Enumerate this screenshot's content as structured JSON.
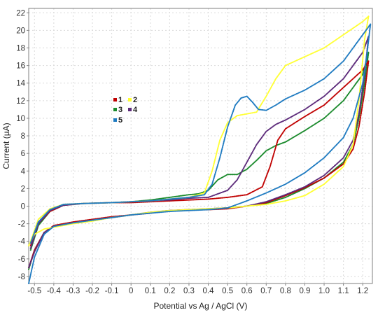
{
  "chart_data": {
    "type": "line",
    "xlabel": "Potential vs Ag / AgCl (V)",
    "ylabel": "Current (µA)",
    "xlim": [
      -0.53,
      1.25
    ],
    "ylim": [
      -8.8,
      22.5
    ],
    "xticks": [
      "-0.5",
      "-0.4",
      "-0.3",
      "-0.2",
      "-0.1",
      "0",
      "0.1",
      "0.2",
      "0.3",
      "0.4",
      "0.5",
      "0.6",
      "0.7",
      "0.8",
      "0.9",
      "1.0",
      "1.1",
      "1.2"
    ],
    "xtick_values": [
      -0.5,
      -0.4,
      -0.3,
      -0.2,
      -0.1,
      0,
      0.1,
      0.2,
      0.3,
      0.4,
      0.5,
      0.6,
      0.7,
      0.8,
      0.9,
      1.0,
      1.1,
      1.2
    ],
    "yticks": [
      "-8",
      "-6",
      "-4",
      "-2",
      "0",
      "2",
      "4",
      "6",
      "8",
      "10",
      "12",
      "14",
      "16",
      "18",
      "20",
      "22"
    ],
    "ytick_values": [
      -8,
      -6,
      -4,
      -2,
      0,
      2,
      4,
      6,
      8,
      10,
      12,
      14,
      16,
      18,
      20,
      22
    ],
    "grid": true,
    "legend_placement": "center-left",
    "series": [
      {
        "name": "1",
        "color": "#c00000",
        "x": [
          -0.52,
          -0.48,
          -0.42,
          -0.35,
          -0.25,
          -0.1,
          0.0,
          0.1,
          0.2,
          0.3,
          0.4,
          0.5,
          0.6,
          0.68,
          0.72,
          0.76,
          0.8,
          0.9,
          1.0,
          1.1,
          1.2,
          1.23,
          1.21,
          1.18,
          1.15,
          1.1,
          1.0,
          0.9,
          0.8,
          0.7,
          0.6,
          0.5,
          0.4,
          0.3,
          0.2,
          0.1,
          0.0,
          -0.1,
          -0.2,
          -0.3,
          -0.4,
          -0.45,
          -0.5,
          -0.53
        ],
        "y": [
          -4.5,
          -2.0,
          -0.6,
          0.1,
          0.3,
          0.4,
          0.4,
          0.5,
          0.6,
          0.7,
          0.8,
          1.0,
          1.3,
          2.2,
          4.5,
          7.5,
          8.8,
          10.2,
          11.5,
          13.5,
          15.5,
          16.5,
          13.0,
          9.0,
          6.5,
          4.8,
          3.2,
          2.1,
          1.2,
          0.4,
          0.0,
          -0.3,
          -0.4,
          -0.4,
          -0.5,
          -0.8,
          -1.0,
          -1.2,
          -1.5,
          -1.8,
          -2.2,
          -3.0,
          -5.0,
          -7.0
        ]
      },
      {
        "name": "2",
        "color": "#ffff33",
        "x": [
          -0.52,
          -0.48,
          -0.42,
          -0.35,
          -0.25,
          -0.1,
          0.0,
          0.1,
          0.2,
          0.3,
          0.38,
          0.42,
          0.46,
          0.5,
          0.55,
          0.6,
          0.65,
          0.7,
          0.75,
          0.8,
          0.9,
          1.0,
          1.1,
          1.2,
          1.23,
          1.21,
          1.18,
          1.15,
          1.1,
          1.0,
          0.9,
          0.8,
          0.7,
          0.6,
          0.5,
          0.4,
          0.3,
          0.2,
          0.1,
          0.0,
          -0.1,
          -0.2,
          -0.3,
          -0.4,
          -0.45,
          -0.5,
          -0.53
        ],
        "y": [
          -4.0,
          -1.5,
          -0.3,
          0.2,
          0.3,
          0.4,
          0.5,
          0.6,
          0.8,
          1.0,
          1.5,
          4.0,
          7.5,
          9.5,
          10.3,
          10.5,
          10.7,
          12.5,
          14.5,
          16.0,
          17.0,
          18.0,
          19.5,
          21.0,
          21.6,
          19.0,
          12.0,
          7.0,
          4.5,
          2.5,
          1.2,
          0.6,
          0.2,
          0.0,
          -0.2,
          -0.3,
          -0.4,
          -0.5,
          -0.7,
          -1.0,
          -1.3,
          -1.7,
          -2.0,
          -2.4,
          -2.6,
          -3.2,
          -4.5
        ]
      },
      {
        "name": "3",
        "color": "#1a8a2c",
        "x": [
          -0.52,
          -0.48,
          -0.42,
          -0.35,
          -0.25,
          -0.1,
          0.0,
          0.1,
          0.2,
          0.3,
          0.35,
          0.4,
          0.45,
          0.5,
          0.55,
          0.6,
          0.65,
          0.7,
          0.75,
          0.8,
          0.9,
          1.0,
          1.1,
          1.2,
          1.23,
          1.21,
          1.18,
          1.15,
          1.1,
          1.0,
          0.9,
          0.8,
          0.7,
          0.6,
          0.5,
          0.4,
          0.3,
          0.2,
          0.1,
          0.0,
          -0.1,
          -0.2,
          -0.3,
          -0.4,
          -0.45,
          -0.5,
          -0.53
        ],
        "y": [
          -5.0,
          -2.2,
          -0.6,
          0.1,
          0.3,
          0.4,
          0.5,
          0.7,
          1.0,
          1.3,
          1.4,
          1.8,
          3.0,
          3.6,
          3.6,
          4.2,
          5.2,
          6.3,
          6.9,
          7.3,
          8.6,
          10.0,
          12.0,
          15.0,
          17.5,
          14.0,
          10.0,
          7.0,
          5.0,
          3.2,
          2.0,
          1.0,
          0.3,
          0.0,
          -0.2,
          -0.3,
          -0.4,
          -0.5,
          -0.7,
          -1.0,
          -1.3,
          -1.6,
          -1.9,
          -2.3,
          -3.0,
          -5.0,
          -7.2
        ]
      },
      {
        "name": "4",
        "color": "#5c2a7a",
        "x": [
          -0.52,
          -0.48,
          -0.42,
          -0.35,
          -0.25,
          -0.1,
          0.0,
          0.1,
          0.2,
          0.3,
          0.4,
          0.5,
          0.55,
          0.6,
          0.65,
          0.7,
          0.75,
          0.8,
          0.9,
          1.0,
          1.1,
          1.2,
          1.23,
          1.21,
          1.18,
          1.15,
          1.1,
          1.0,
          0.9,
          0.8,
          0.7,
          0.6,
          0.5,
          0.4,
          0.3,
          0.2,
          0.1,
          0.0,
          -0.1,
          -0.2,
          -0.3,
          -0.4,
          -0.45,
          -0.5,
          -0.53
        ],
        "y": [
          -4.8,
          -2.0,
          -0.5,
          0.1,
          0.3,
          0.4,
          0.5,
          0.6,
          0.7,
          0.9,
          1.0,
          1.8,
          3.0,
          5.0,
          7.0,
          8.5,
          9.3,
          9.8,
          11.0,
          12.5,
          14.5,
          17.5,
          19.3,
          15.0,
          10.5,
          7.5,
          5.5,
          3.5,
          2.2,
          1.3,
          0.5,
          0.0,
          -0.2,
          -0.3,
          -0.4,
          -0.5,
          -0.7,
          -1.0,
          -1.3,
          -1.6,
          -1.9,
          -2.3,
          -3.0,
          -5.2,
          -7.0
        ]
      },
      {
        "name": "5",
        "color": "#1f7bc1",
        "x": [
          -0.52,
          -0.48,
          -0.42,
          -0.35,
          -0.25,
          -0.1,
          0.0,
          0.1,
          0.2,
          0.3,
          0.38,
          0.42,
          0.46,
          0.5,
          0.54,
          0.57,
          0.6,
          0.63,
          0.66,
          0.7,
          0.75,
          0.8,
          0.9,
          1.0,
          1.1,
          1.2,
          1.24,
          1.22,
          1.2,
          1.15,
          1.1,
          1.0,
          0.9,
          0.8,
          0.7,
          0.6,
          0.55,
          0.5,
          0.4,
          0.3,
          0.2,
          0.1,
          0.0,
          -0.1,
          -0.2,
          -0.3,
          -0.4,
          -0.45,
          -0.5,
          -0.53
        ],
        "y": [
          -4.2,
          -1.8,
          -0.4,
          0.2,
          0.3,
          0.4,
          0.5,
          0.6,
          0.8,
          1.0,
          1.3,
          2.5,
          5.5,
          9.0,
          11.5,
          12.3,
          12.5,
          11.8,
          11.0,
          10.9,
          11.5,
          12.2,
          13.2,
          14.5,
          16.5,
          19.5,
          20.7,
          17.0,
          14.0,
          10.0,
          7.8,
          5.5,
          3.8,
          2.5,
          1.5,
          0.6,
          0.2,
          -0.2,
          -0.4,
          -0.5,
          -0.6,
          -0.8,
          -1.0,
          -1.3,
          -1.6,
          -1.9,
          -2.3,
          -3.2,
          -5.8,
          -8.8
        ]
      }
    ]
  }
}
